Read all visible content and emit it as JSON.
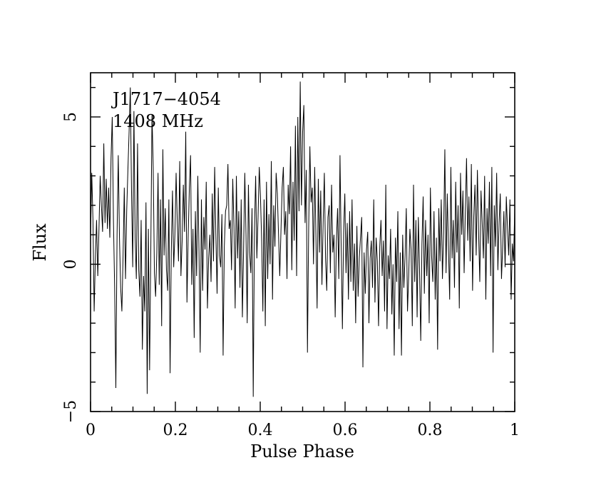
{
  "chart_data": {
    "type": "line",
    "xlabel": "Pulse Phase",
    "ylabel": "Flux",
    "xlim": [
      0,
      1
    ],
    "ylim": [
      -5,
      6.5
    ],
    "x_ticks": [
      {
        "value": 0,
        "label": "0"
      },
      {
        "value": 0.2,
        "label": "0.2"
      },
      {
        "value": 0.4,
        "label": "0.4"
      },
      {
        "value": 0.6,
        "label": "0.6"
      },
      {
        "value": 0.8,
        "label": "0.8"
      },
      {
        "value": 1,
        "label": "1"
      }
    ],
    "y_ticks": [
      {
        "value": -5,
        "label": "−5"
      },
      {
        "value": 0,
        "label": "0"
      },
      {
        "value": 5,
        "label": "5"
      }
    ],
    "annotations": [
      "J1717−4054",
      "1408 MHz"
    ],
    "grid": false,
    "line_color": "#000000",
    "series": [
      {
        "x_start": 0,
        "x_end": 1,
        "values": [
          0.9,
          3.1,
          1.5,
          -1.6,
          0.2,
          1.5,
          -0.4,
          1.2,
          3.0,
          2.0,
          1.1,
          4.1,
          1.4,
          2.9,
          1.2,
          2.6,
          0.9,
          3.6,
          5.0,
          1.5,
          -0.8,
          -4.2,
          1.0,
          3.7,
          0.9,
          -0.8,
          -1.6,
          0.3,
          2.6,
          -0.5,
          1.8,
          3.2,
          4.5,
          6.0,
          2.5,
          -0.1,
          5.2,
          0.9,
          -0.5,
          4.1,
          -0.2,
          -1.1,
          1.5,
          -2.9,
          -0.4,
          -1.6,
          2.1,
          -4.4,
          1.2,
          -3.6,
          0.5,
          5.1,
          3.3,
          -0.3,
          -1.1,
          0.4,
          3.1,
          -0.7,
          2.2,
          -2.1,
          3.9,
          0.3,
          1.9,
          -0.2,
          -0.9,
          2.2,
          -3.7,
          0.4,
          2.5,
          -0.1,
          1.0,
          3.1,
          1.4,
          0.1,
          3.5,
          -0.4,
          0.8,
          2.7,
          1.1,
          4.5,
          -1.3,
          0.9,
          2.6,
          3.7,
          -0.7,
          1.2,
          -2.5,
          1.8,
          -0.4,
          3.0,
          0.4,
          -3.0,
          2.2,
          -0.9,
          1.6,
          0.5,
          2.8,
          -1.5,
          0.2,
          1.0,
          -0.6,
          2.4,
          0.1,
          3.3,
          1.0,
          -1.0,
          2.6,
          0.3,
          -0.1,
          1.7,
          -3.1,
          0.6,
          1.8,
          2.0,
          3.4,
          1.2,
          1.5,
          -0.2,
          2.9,
          1.3,
          -1.5,
          3.0,
          0.2,
          1.8,
          -0.8,
          2.2,
          -1.8,
          0.5,
          3.1,
          1.0,
          -2.0,
          2.7,
          0.4,
          -0.3,
          1.9,
          -4.5,
          1.1,
          3.0,
          0.2,
          1.6,
          3.3,
          2.3,
          0.8,
          -1.6,
          2.2,
          -2.1,
          2.8,
          -0.5,
          1.7,
          0.0,
          3.5,
          -1.2,
          2.0,
          0.6,
          3.1,
          2.4,
          1.0,
          -0.4,
          1.1,
          2.6,
          3.3,
          1.0,
          1.8,
          -0.5,
          2.7,
          1.7,
          4.0,
          -0.2,
          2.8,
          0.8,
          4.7,
          -0.4,
          5.0,
          1.8,
          6.2,
          2.0,
          4.5,
          5.4,
          1.4,
          3.2,
          -3.0,
          1.2,
          4.0,
          2.1,
          2.6,
          0.0,
          3.3,
          1.0,
          -1.5,
          2.9,
          0.4,
          2.5,
          -0.7,
          1.4,
          3.1,
          0.2,
          -0.9,
          1.6,
          2.0,
          -0.3,
          2.7,
          0.4,
          1.0,
          -1.8,
          0.8,
          1.9,
          -0.5,
          3.7,
          0.5,
          -2.2,
          1.1,
          2.4,
          -0.3,
          1.4,
          -1.2,
          1.8,
          -0.6,
          2.2,
          -0.9,
          0.7,
          -2.0,
          1.3,
          -1.1,
          0.2,
          0.9,
          1.6,
          -3.5,
          0.4,
          -1.0,
          0.5,
          1.1,
          -2.0,
          0.2,
          0.8,
          -0.8,
          2.2,
          -1.3,
          0.9,
          0.1,
          -2.1,
          0.6,
          1.5,
          -0.4,
          0.8,
          -1.6,
          2.7,
          -2.2,
          0.3,
          -0.5,
          1.2,
          -1.7,
          0.0,
          -3.1,
          0.9,
          -0.6,
          1.8,
          -2.2,
          0.4,
          -3.1,
          1.0,
          -0.8,
          0.3,
          1.9,
          -1.6,
          -0.4,
          1.2,
          0.5,
          -2.1,
          2.7,
          -0.6,
          1.5,
          -1.8,
          1.6,
          -0.2,
          -2.6,
          0.7,
          2.3,
          -1.0,
          1.5,
          -0.4,
          1.0,
          -2.0,
          2.6,
          0.3,
          -0.6,
          1.8,
          -1.2,
          0.9,
          -2.9,
          1.9,
          0.1,
          2.2,
          -0.5,
          1.1,
          3.9,
          -0.3,
          2.4,
          0.6,
          -1.2,
          3.3,
          0.2,
          1.5,
          -0.8,
          2.8,
          0.4,
          2.0,
          -1.5,
          3.1,
          1.0,
          2.5,
          -0.3,
          1.8,
          3.6,
          0.8,
          2.3,
          0.1,
          3.4,
          -0.9,
          1.6,
          2.7,
          0.3,
          3.2,
          1.1,
          -0.6,
          2.5,
          1.4,
          0.2,
          3.0,
          -1.2,
          1.9,
          0.7,
          2.8,
          -0.4,
          3.3,
          -3.0,
          2.0,
          0.6,
          3.1,
          -0.2,
          1.4,
          2.4,
          -0.5,
          0.6,
          1.8,
          -0.1,
          2.3,
          1.2,
          0.3,
          2.2,
          -1.2,
          0.7,
          0.1,
          1.9
        ]
      }
    ]
  }
}
